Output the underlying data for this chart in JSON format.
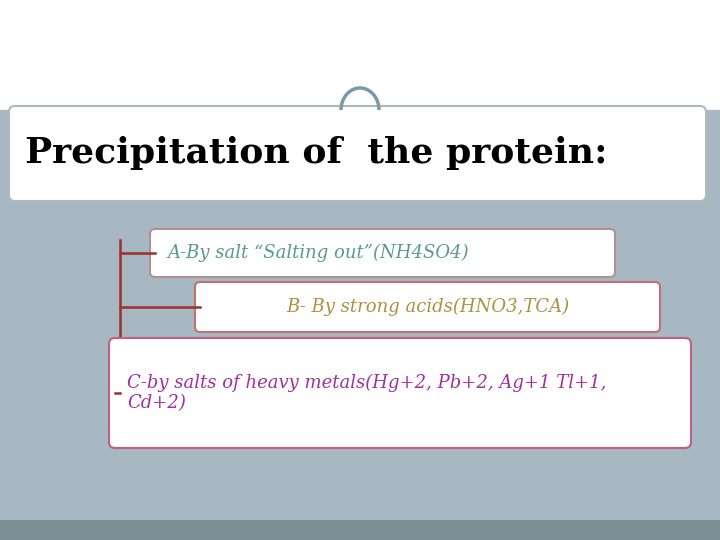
{
  "bg_color": "#a8b8c2",
  "title_text": "Precipitation of  the protein:",
  "title_box_color": "#ffffff",
  "title_text_color": "#000000",
  "title_fontsize": 26,
  "item_A_text": "A-By salt “Salting out”(NH4SO4)",
  "item_A_color": "#5a9a8a",
  "item_A_box": "#ffffff",
  "item_A_border": "#b09090",
  "item_B_text": "B- By strong acids(HNO3,TCA)",
  "item_B_color": "#b09040",
  "item_B_box": "#ffffff",
  "item_B_border": "#c07070",
  "item_C_text": "C-by salts of heavy metals(Hg+2, Pb+2, Ag+1 Tl+1,\nCd+2)",
  "item_C_color": "#a030a0",
  "item_C_box": "#ffffff",
  "item_C_border": "#c06080",
  "connector_color": "#9b3030",
  "top_strip_color": "#ffffff",
  "bottom_strip_color": "#7a8f96",
  "arch_color": "#7a9aaa",
  "border_color": "#b0b8be"
}
